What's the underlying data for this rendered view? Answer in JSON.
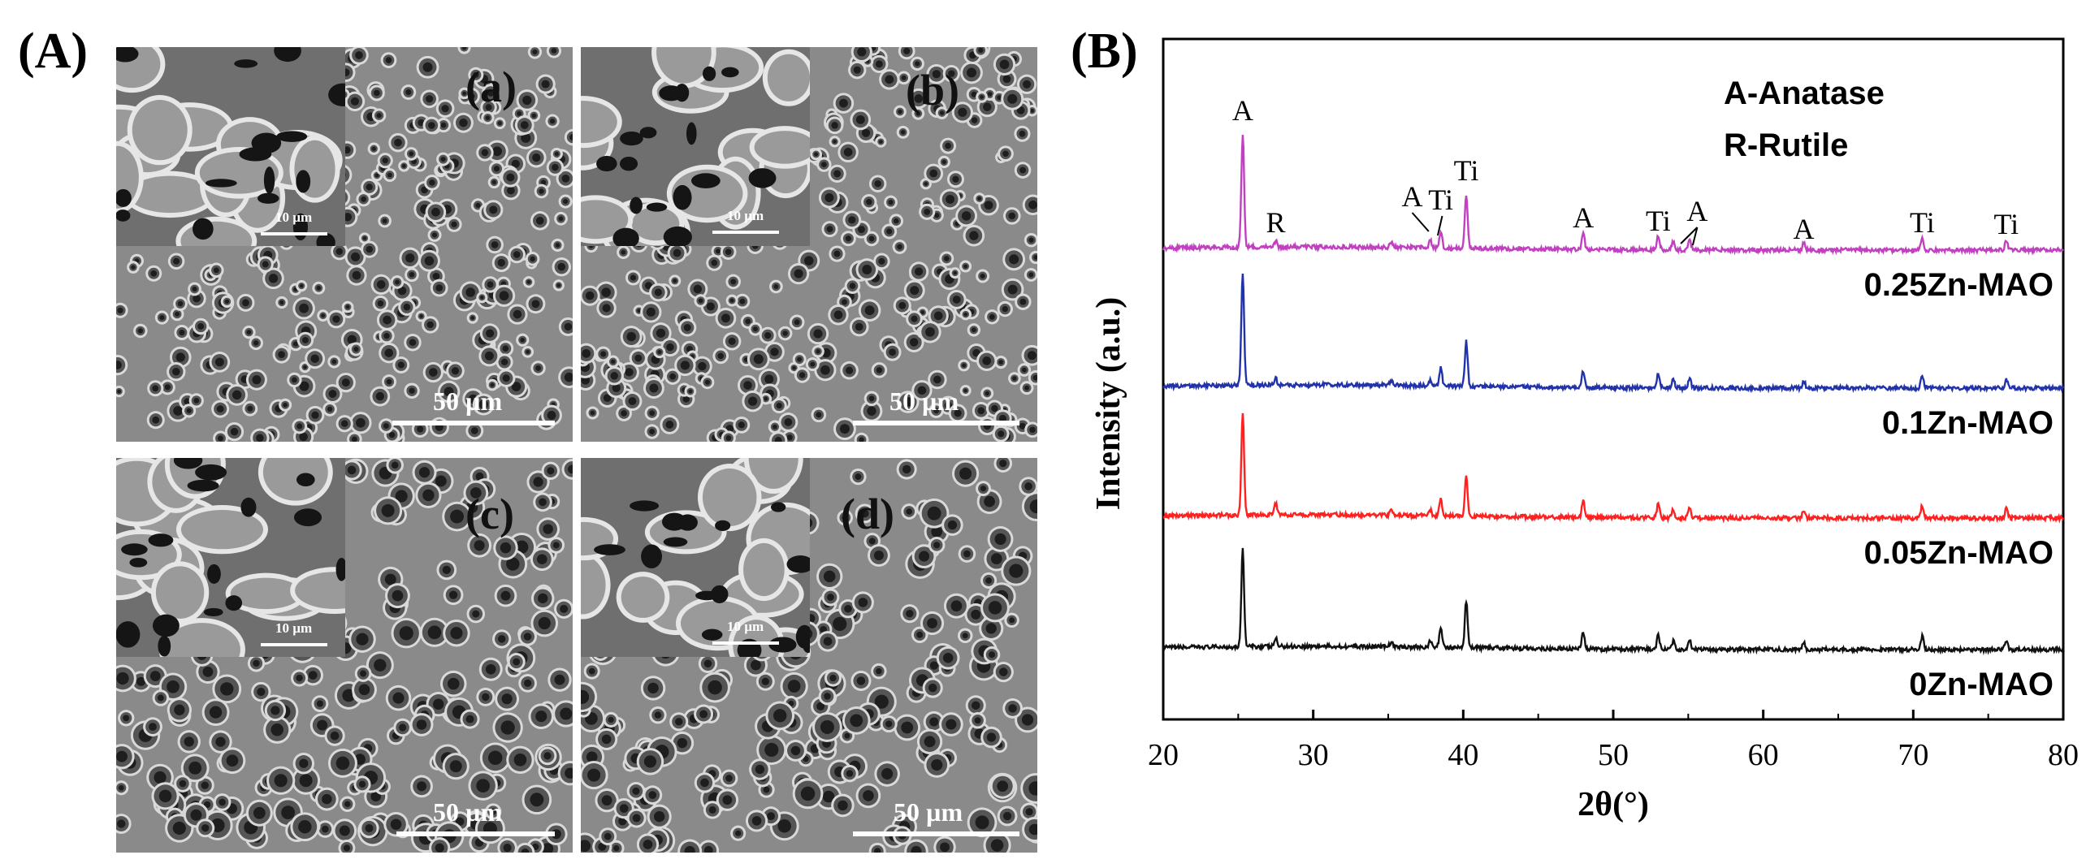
{
  "panel_a": {
    "label": "(A)",
    "images": [
      {
        "tag": "(a)",
        "scale": "50 µm",
        "inset_scale": "10 µm"
      },
      {
        "tag": "(b)",
        "scale": "50 µm",
        "inset_scale": "10 µm"
      },
      {
        "tag": "(c)",
        "scale": "50 µm",
        "inset_scale": "10 µm"
      },
      {
        "tag": "(d)",
        "scale": "50 µm",
        "inset_scale": "10 µm"
      }
    ]
  },
  "panel_b": {
    "label": "(B)"
  },
  "colors": {
    "black": "#111111",
    "red": "#ff2020",
    "blue": "#2233aa",
    "magenta": "#c040c0",
    "sem_base": "#8a8a8a"
  },
  "chart_data": {
    "type": "line",
    "title": "",
    "xlabel": "2θ(°)",
    "ylabel": "Intensity (a.u.)",
    "xlim": [
      20,
      80
    ],
    "xticks": [
      20,
      30,
      40,
      50,
      60,
      70,
      80
    ],
    "legend_title": [
      "A-Anatase",
      "R-Rutile"
    ],
    "peak_positions": [
      25.3,
      27.5,
      35.2,
      37.8,
      38.5,
      40.2,
      48.0,
      53.0,
      54.0,
      55.1,
      62.7,
      70.6,
      76.2
    ],
    "series": [
      {
        "name": "0Zn-MAO",
        "color": "#111111",
        "offset": 0,
        "peak_heights": [
          120,
          10,
          6,
          7,
          26,
          58,
          20,
          18,
          10,
          12,
          9,
          16,
          11
        ]
      },
      {
        "name": "0.05Zn-MAO",
        "color": "#ff2020",
        "offset": 1,
        "peak_heights": [
          125,
          14,
          6,
          7,
          22,
          50,
          20,
          18,
          10,
          12,
          9,
          16,
          11
        ]
      },
      {
        "name": "0.1Zn-MAO",
        "color": "#2233aa",
        "offset": 2,
        "peak_heights": [
          138,
          8,
          6,
          7,
          22,
          55,
          20,
          18,
          10,
          12,
          9,
          16,
          11
        ]
      },
      {
        "name": "0.25Zn-MAO",
        "color": "#c040c0",
        "offset": 3,
        "peak_heights": [
          140,
          7,
          6,
          9,
          20,
          65,
          20,
          18,
          10,
          12,
          9,
          16,
          11
        ]
      }
    ],
    "peak_labels": [
      {
        "text": "A",
        "x": 25.3
      },
      {
        "text": "R",
        "x": 27.5
      },
      {
        "text": "A",
        "x": 36.6
      },
      {
        "text": "Ti",
        "x": 38.5
      },
      {
        "text": "Ti",
        "x": 40.2
      },
      {
        "text": "A",
        "x": 48.0
      },
      {
        "text": "Ti",
        "x": 53.0
      },
      {
        "text": "A",
        "x": 55.6
      },
      {
        "text": "A",
        "x": 62.7
      },
      {
        "text": "Ti",
        "x": 70.6
      },
      {
        "text": "Ti",
        "x": 76.2
      }
    ]
  }
}
